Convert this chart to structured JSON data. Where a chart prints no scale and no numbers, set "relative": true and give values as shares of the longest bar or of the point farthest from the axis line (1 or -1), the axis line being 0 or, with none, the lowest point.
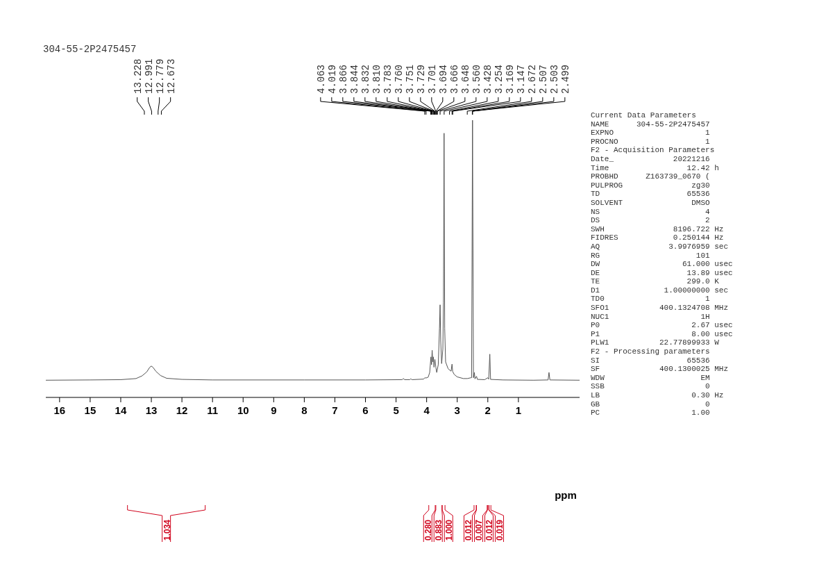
{
  "chart_data": [
    {
      "type": "line",
      "title": "304-55-2P2475457",
      "xlabel": "ppm",
      "relative": true,
      "color": "#555555",
      "x": [
        16.45,
        15,
        14,
        13.5,
        13.3,
        13.15,
        13.05,
        13.0,
        12.95,
        12.85,
        12.7,
        12.5,
        12,
        11,
        8,
        6,
        4.8,
        4.76,
        4.72,
        4.55,
        4.52,
        4.48,
        4.1,
        4.06,
        4.02,
        3.95,
        3.9,
        3.86,
        3.84,
        3.82,
        3.8,
        3.78,
        3.76,
        3.73,
        3.7,
        3.67,
        3.62,
        3.58,
        3.56,
        3.54,
        3.51,
        3.47,
        3.45,
        3.43,
        3.41,
        3.38,
        3.3,
        3.22,
        3.2,
        3.17,
        3.15,
        3.1,
        3.0,
        2.8,
        2.67,
        2.55,
        2.53,
        2.5,
        2.47,
        2.44,
        2.42,
        2.37,
        2.34,
        2.1,
        2.0,
        1.97,
        1.935,
        1.91,
        1.5,
        0.5,
        0.03,
        0.0,
        -0.03,
        -1.0
      ],
      "values": [
        0.062,
        0.063,
        0.064,
        0.068,
        0.078,
        0.092,
        0.109,
        0.113,
        0.109,
        0.094,
        0.079,
        0.069,
        0.065,
        0.063,
        0.063,
        0.063,
        0.064,
        0.068,
        0.064,
        0.064,
        0.067,
        0.064,
        0.066,
        0.071,
        0.07,
        0.073,
        0.09,
        0.146,
        0.118,
        0.17,
        0.128,
        0.146,
        0.109,
        0.137,
        0.109,
        0.09,
        0.118,
        0.25,
        0.334,
        0.203,
        0.122,
        0.175,
        0.343,
        0.953,
        0.25,
        0.128,
        0.104,
        0.096,
        0.095,
        0.12,
        0.094,
        0.083,
        0.074,
        0.068,
        0.068,
        0.071,
        0.071,
        1.0,
        0.071,
        0.09,
        0.067,
        0.076,
        0.065,
        0.064,
        0.071,
        0.066,
        0.156,
        0.065,
        0.063,
        0.062,
        0.063,
        0.09,
        0.063,
        0.062
      ],
      "xlim": [
        16.45,
        -1.0
      ],
      "xticks": [
        16,
        15,
        14,
        13,
        12,
        11,
        10,
        9,
        8,
        7,
        6,
        5,
        4,
        3,
        2,
        1
      ],
      "annotations": [
        "13.228",
        "12.991",
        "12.779",
        "12.673",
        "4.063",
        "4.019",
        "3.866",
        "3.844",
        "3.832",
        "3.810",
        "3.783",
        "3.760",
        "3.751",
        "3.729",
        "3.701",
        "3.694",
        "3.666",
        "3.648",
        "3.560",
        "3.428",
        "3.254",
        "3.169",
        "3.147",
        "2.672",
        "2.507",
        "2.503",
        "2.499",
        "1.034",
        "0.280",
        "0.883",
        "1.000",
        "0.012",
        "0.007",
        "0.012",
        "0.019"
      ]
    },
    {
      "type": "other",
      "annotations": [
        "Current Data Parameters",
        "NAME      304-55-2P2475457",
        "EXPNO                    1",
        "PROCNO                   1",
        "F2 - Acquisition Parameters",
        "Date_             20221216",
        "Time                 12.42 h",
        "PROBHD      Z163739_0670 (",
        "PULPROG               zg30",
        "TD                   65536",
        "SOLVENT               DMSO",
        "NS                       4",
        "DS                       2",
        "SWH               8196.722 Hz",
        "FIDRES            0.250144 Hz",
        "AQ               3.9976959 sec",
        "RG                     101",
        "DW                  61.000 usec",
        "DE                   13.89 usec",
        "TE                   299.0 K",
        "D1              1.00000000 sec",
        "TD0                      1",
        "SFO1           400.1324708 MHz",
        "NUC1                    1H",
        "P0                    2.67 usec",
        "P1                    8.00 usec",
        "PLW1           22.77899933 W",
        "F2 - Processing parameters",
        "SI                   65536",
        "SF             400.1300025 MHz",
        "WDW                     EM",
        "SSB                      0",
        "LB                    0.30 Hz",
        "GB                       0",
        "PC                    1.00"
      ]
    }
  ]
}
